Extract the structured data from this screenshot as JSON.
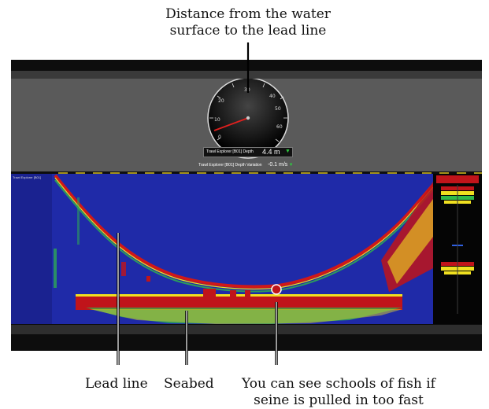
{
  "captions": {
    "top_line1": "Distance from the water",
    "top_line2": "surface to the lead line",
    "lead_line": "Lead line",
    "seabed": "Seabed",
    "fish_line1": "You can see schools of fish if",
    "fish_line2": "seine is pulled in too fast"
  },
  "gauge": {
    "ticks": [
      "0",
      "10",
      "20",
      "30",
      "40",
      "50",
      "60"
    ],
    "depth_label": "Trawl Explorer [B01] Depth",
    "depth_value": "4.4 m",
    "variation_label": "Trawl Explorer [B01] Depth Variation",
    "variation_value": "-0.1 m/s"
  },
  "echogram": {
    "label": "Trawl Explorer [B01]"
  },
  "colors": {
    "water": "#1f2aa8",
    "echo_strong": "#c0141a",
    "echo_mid": "#f0e020",
    "echo_weak": "#2fb84a",
    "status_up": "#2ecc40"
  }
}
